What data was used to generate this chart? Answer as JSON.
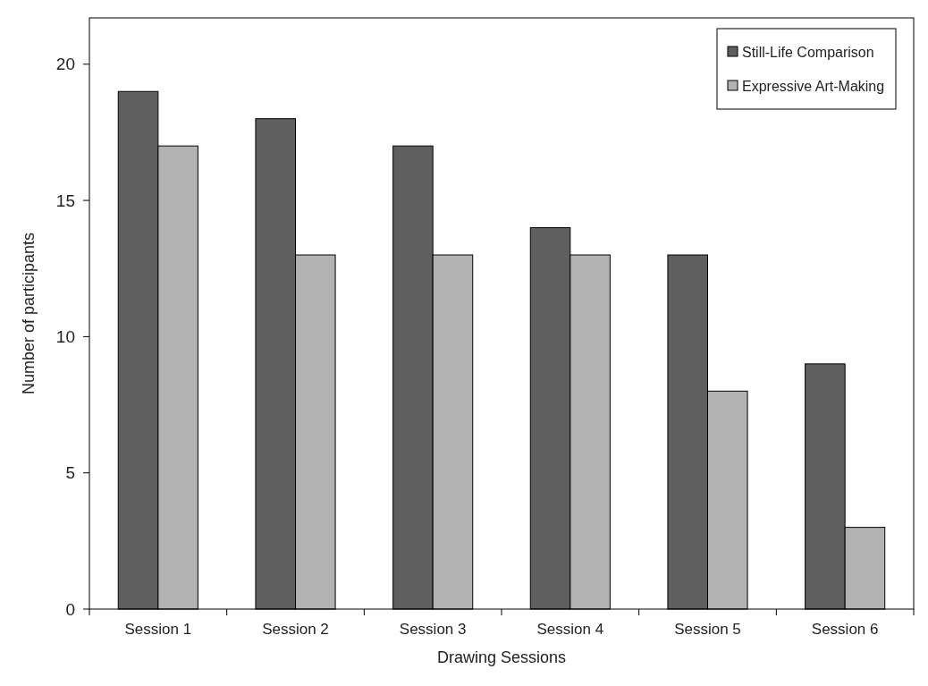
{
  "chart_data": {
    "type": "bar",
    "xlabel": "Drawing Sessions",
    "ylabel": "Number of participants",
    "categories": [
      "Session 1",
      "Session 2",
      "Session 3",
      "Session 4",
      "Session 5",
      "Session 6"
    ],
    "series": [
      {
        "name": "Still-Life Comparison",
        "color": "#5f5f5f",
        "values": [
          19,
          18,
          17,
          14,
          13,
          9
        ]
      },
      {
        "name": "Expressive Art-Making",
        "color": "#b2b2b2",
        "values": [
          17,
          13,
          13,
          13,
          8,
          3
        ]
      }
    ],
    "ylim": [
      0,
      21.7
    ],
    "yticks": [
      0,
      5,
      10,
      15,
      20
    ],
    "grid": false,
    "legend": "top right"
  }
}
